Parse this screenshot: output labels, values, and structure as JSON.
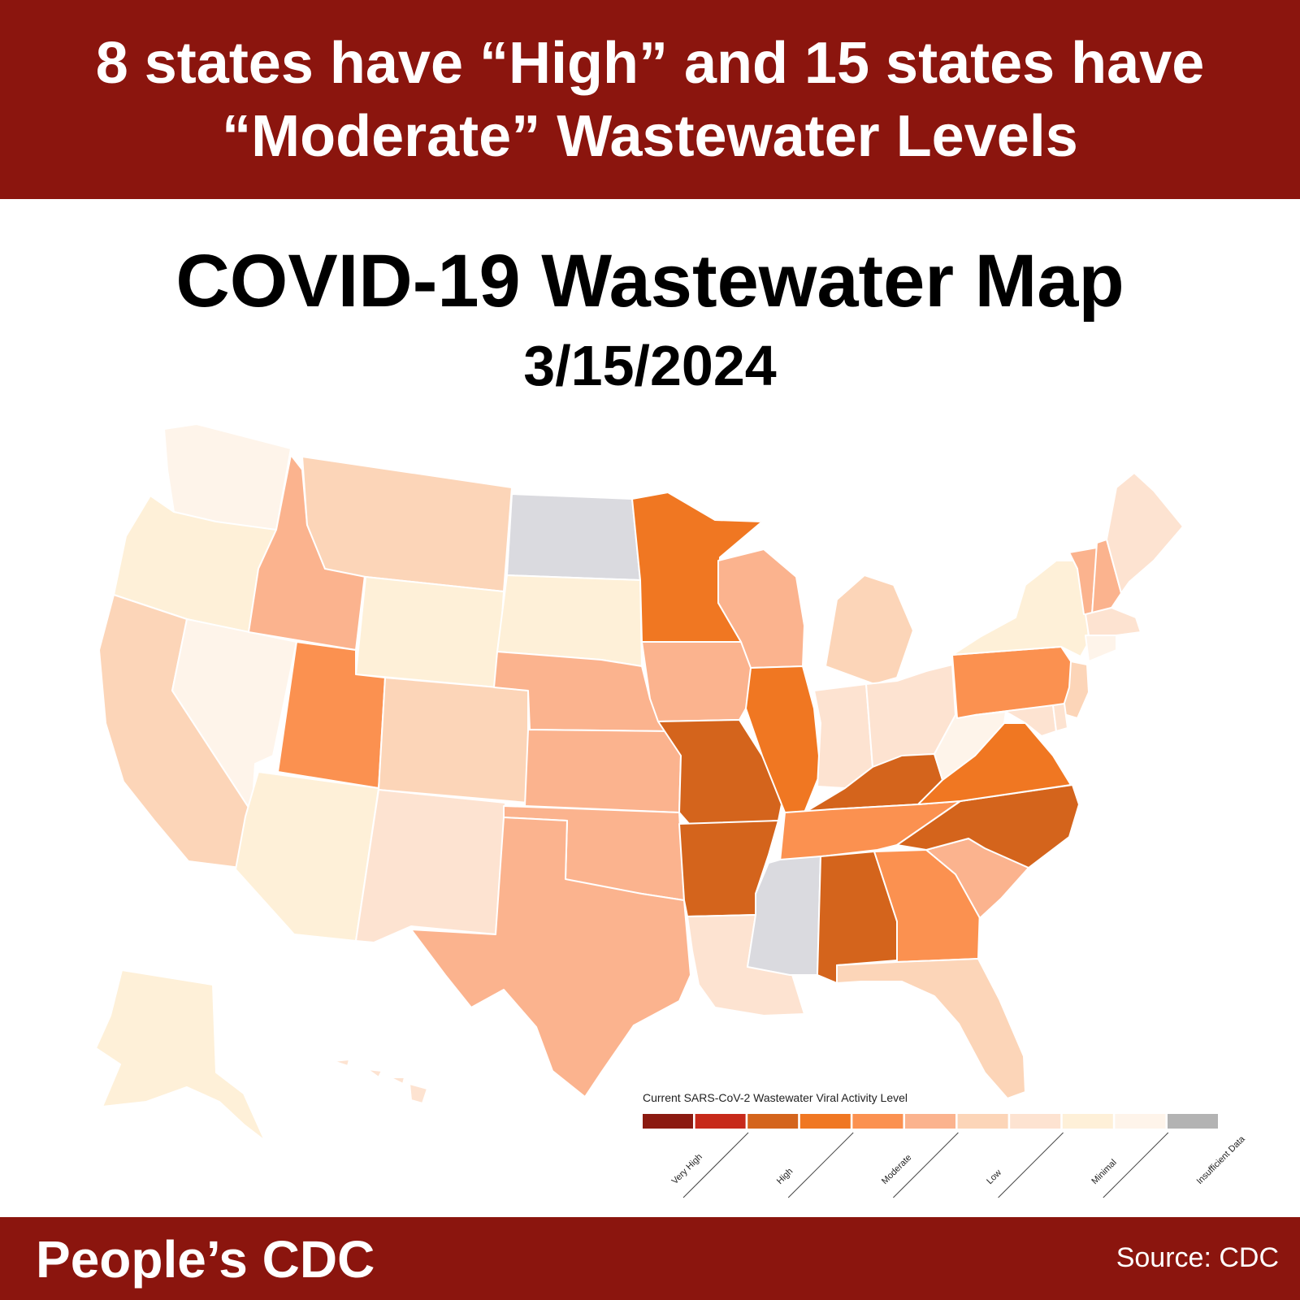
{
  "headline": {
    "line1": "8 states have “High” and 15 states have",
    "line2": "“Moderate” Wastewater Levels"
  },
  "title": "COVID-19 Wastewater Map",
  "date": "3/15/2024",
  "legend": {
    "title": "Current SARS-CoV-2 Wastewater Viral Activity Level",
    "swatches": [
      "#8b1a10",
      "#c7291a",
      "#d4641c",
      "#f07722",
      "#fb9150",
      "#fbb38e",
      "#fcd5b8",
      "#fde3d1",
      "#fef0d8",
      "#fef4ea",
      "#b3b3b3"
    ],
    "labels": [
      "Very High",
      "High",
      "Moderate",
      "Low",
      "Minimal",
      "Insufficient Data"
    ]
  },
  "levels": {
    "high": "#d4641c",
    "moderate_dark": "#f07722",
    "moderate_mid": "#fb9150",
    "moderate_light": "#fbb38e",
    "low_dark": "#fcd5b8",
    "low_light": "#fde3d1",
    "minimal_dark": "#fef0d8",
    "minimal_light": "#fef4ea",
    "insufficient": "#dadadf"
  },
  "states": [
    {
      "name": "Washington",
      "level": "minimal_light"
    },
    {
      "name": "Oregon",
      "level": "minimal_dark"
    },
    {
      "name": "California",
      "level": "low_dark"
    },
    {
      "name": "Nevada",
      "level": "minimal_light"
    },
    {
      "name": "Idaho",
      "level": "moderate_light"
    },
    {
      "name": "Montana",
      "level": "low_dark"
    },
    {
      "name": "Wyoming",
      "level": "minimal_dark"
    },
    {
      "name": "Utah",
      "level": "moderate_mid"
    },
    {
      "name": "Arizona",
      "level": "minimal_dark"
    },
    {
      "name": "Colorado",
      "level": "low_dark"
    },
    {
      "name": "New Mexico",
      "level": "low_light"
    },
    {
      "name": "North Dakota",
      "level": "insufficient"
    },
    {
      "name": "South Dakota",
      "level": "minimal_dark"
    },
    {
      "name": "Nebraska",
      "level": "moderate_light"
    },
    {
      "name": "Kansas",
      "level": "moderate_light"
    },
    {
      "name": "Oklahoma",
      "level": "moderate_light"
    },
    {
      "name": "Texas",
      "level": "moderate_light"
    },
    {
      "name": "Minnesota",
      "level": "moderate_dark"
    },
    {
      "name": "Iowa",
      "level": "moderate_light"
    },
    {
      "name": "Missouri",
      "level": "high"
    },
    {
      "name": "Arkansas",
      "level": "high"
    },
    {
      "name": "Louisiana",
      "level": "low_light"
    },
    {
      "name": "Wisconsin",
      "level": "moderate_light"
    },
    {
      "name": "Illinois",
      "level": "moderate_dark"
    },
    {
      "name": "Michigan",
      "level": "low_dark"
    },
    {
      "name": "Indiana",
      "level": "low_light"
    },
    {
      "name": "Ohio",
      "level": "low_light"
    },
    {
      "name": "Kentucky",
      "level": "high"
    },
    {
      "name": "Tennessee",
      "level": "moderate_mid"
    },
    {
      "name": "Mississippi",
      "level": "insufficient"
    },
    {
      "name": "Alabama",
      "level": "high"
    },
    {
      "name": "Georgia",
      "level": "moderate_mid"
    },
    {
      "name": "Florida",
      "level": "low_dark"
    },
    {
      "name": "South Carolina",
      "level": "moderate_light"
    },
    {
      "name": "North Carolina",
      "level": "high"
    },
    {
      "name": "Virginia",
      "level": "moderate_dark"
    },
    {
      "name": "West Virginia",
      "level": "minimal_light"
    },
    {
      "name": "Pennsylvania",
      "level": "moderate_mid"
    },
    {
      "name": "New York",
      "level": "minimal_dark"
    },
    {
      "name": "Vermont",
      "level": "moderate_light"
    },
    {
      "name": "New Hampshire",
      "level": "moderate_light"
    },
    {
      "name": "Maine",
      "level": "low_light"
    },
    {
      "name": "Massachusetts",
      "level": "low_light"
    },
    {
      "name": "Connecticut",
      "level": "minimal_light"
    },
    {
      "name": "New Jersey",
      "level": "low_dark"
    },
    {
      "name": "Maryland",
      "level": "low_light"
    },
    {
      "name": "Delaware",
      "level": "low_light"
    },
    {
      "name": "Alaska",
      "level": "minimal_dark"
    },
    {
      "name": "Hawaii",
      "level": "low_light"
    }
  ],
  "footer": {
    "brand": "People’s CDC",
    "source": "Source: CDC"
  }
}
